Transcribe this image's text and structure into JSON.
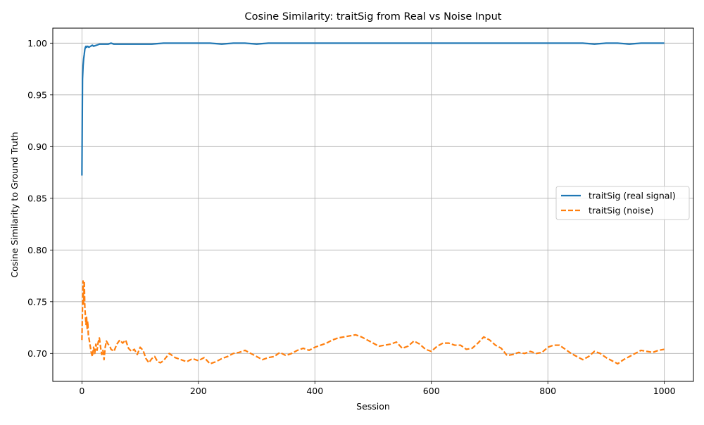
{
  "chart_data": {
    "type": "line",
    "title": "Cosine Similarity: traitSig from Real vs Noise Input",
    "xlabel": "Session",
    "ylabel": "Cosine Similarity to Ground Truth",
    "xlim": [
      -50,
      1050
    ],
    "ylim": [
      0.673,
      1.0145
    ],
    "xticks": [
      0,
      200,
      400,
      600,
      800,
      1000
    ],
    "xtick_labels": [
      "0",
      "200",
      "400",
      "600",
      "800",
      "1000"
    ],
    "yticks": [
      0.7,
      0.75,
      0.8,
      0.85,
      0.9,
      0.95,
      1.0
    ],
    "ytick_labels": [
      "0.70",
      "0.75",
      "0.80",
      "0.85",
      "0.90",
      "0.95",
      "1.00"
    ],
    "grid": true,
    "legend_position": "center-right",
    "series": [
      {
        "name": "traitSig (real signal)",
        "color": "#1f77b4",
        "style": "solid",
        "x": [
          0,
          1,
          2,
          3,
          4,
          5,
          6,
          7,
          8,
          10,
          12,
          15,
          18,
          20,
          25,
          30,
          35,
          40,
          45,
          50,
          55,
          60,
          65,
          70,
          80,
          90,
          100,
          110,
          120,
          140,
          160,
          180,
          200,
          220,
          240,
          260,
          280,
          300,
          320,
          340,
          360,
          380,
          400,
          420,
          440,
          460,
          480,
          500,
          520,
          540,
          560,
          580,
          600,
          620,
          640,
          660,
          680,
          700,
          720,
          740,
          760,
          780,
          800,
          820,
          840,
          860,
          880,
          900,
          920,
          940,
          960,
          980,
          1000
        ],
        "y": [
          0.872,
          0.965,
          0.978,
          0.985,
          0.989,
          0.994,
          0.996,
          0.997,
          0.996,
          0.997,
          0.996,
          0.997,
          0.998,
          0.997,
          0.998,
          0.999,
          0.999,
          0.999,
          0.999,
          1.0,
          0.999,
          0.999,
          0.999,
          0.999,
          0.999,
          0.999,
          0.999,
          0.999,
          0.999,
          1.0,
          1.0,
          1.0,
          1.0,
          1.0,
          0.999,
          1.0,
          1.0,
          0.999,
          1.0,
          1.0,
          1.0,
          1.0,
          1.0,
          1.0,
          1.0,
          1.0,
          1.0,
          1.0,
          1.0,
          1.0,
          1.0,
          1.0,
          1.0,
          1.0,
          1.0,
          1.0,
          1.0,
          1.0,
          1.0,
          1.0,
          1.0,
          1.0,
          1.0,
          1.0,
          1.0,
          1.0,
          0.999,
          1.0,
          1.0,
          0.999,
          1.0,
          1.0,
          1.0
        ]
      },
      {
        "name": "traitSig (noise)",
        "color": "#ff7f0e",
        "style": "dashed",
        "x": [
          0,
          1,
          2,
          3,
          4,
          5,
          6,
          7,
          8,
          9,
          10,
          11,
          12,
          14,
          16,
          18,
          20,
          22,
          24,
          26,
          28,
          30,
          32,
          34,
          36,
          38,
          40,
          42,
          45,
          48,
          50,
          55,
          60,
          65,
          70,
          75,
          80,
          85,
          90,
          95,
          100,
          105,
          110,
          115,
          120,
          125,
          130,
          135,
          140,
          150,
          160,
          170,
          180,
          190,
          200,
          210,
          220,
          230,
          240,
          250,
          260,
          270,
          280,
          290,
          300,
          310,
          320,
          330,
          340,
          350,
          360,
          370,
          380,
          390,
          400,
          410,
          420,
          430,
          440,
          450,
          460,
          470,
          480,
          490,
          500,
          510,
          520,
          530,
          540,
          550,
          560,
          570,
          580,
          590,
          600,
          610,
          620,
          630,
          640,
          650,
          660,
          670,
          680,
          690,
          700,
          710,
          720,
          730,
          740,
          750,
          760,
          770,
          780,
          790,
          800,
          810,
          820,
          830,
          840,
          850,
          860,
          870,
          880,
          890,
          900,
          910,
          920,
          930,
          940,
          950,
          960,
          970,
          980,
          990,
          1000
        ],
        "y": [
          0.713,
          0.745,
          0.77,
          0.748,
          0.77,
          0.745,
          0.736,
          0.728,
          0.735,
          0.724,
          0.731,
          0.718,
          0.715,
          0.708,
          0.701,
          0.697,
          0.706,
          0.7,
          0.709,
          0.703,
          0.711,
          0.715,
          0.706,
          0.699,
          0.703,
          0.694,
          0.706,
          0.712,
          0.709,
          0.707,
          0.704,
          0.702,
          0.709,
          0.713,
          0.71,
          0.713,
          0.705,
          0.702,
          0.704,
          0.699,
          0.706,
          0.703,
          0.695,
          0.691,
          0.695,
          0.697,
          0.692,
          0.691,
          0.693,
          0.7,
          0.696,
          0.694,
          0.692,
          0.695,
          0.693,
          0.696,
          0.69,
          0.692,
          0.695,
          0.697,
          0.7,
          0.701,
          0.703,
          0.7,
          0.697,
          0.694,
          0.696,
          0.697,
          0.701,
          0.698,
          0.7,
          0.703,
          0.705,
          0.703,
          0.706,
          0.708,
          0.71,
          0.713,
          0.715,
          0.716,
          0.717,
          0.718,
          0.716,
          0.713,
          0.71,
          0.707,
          0.708,
          0.709,
          0.711,
          0.705,
          0.707,
          0.712,
          0.709,
          0.704,
          0.702,
          0.707,
          0.71,
          0.71,
          0.708,
          0.708,
          0.704,
          0.705,
          0.71,
          0.716,
          0.713,
          0.708,
          0.705,
          0.698,
          0.699,
          0.701,
          0.7,
          0.702,
          0.7,
          0.701,
          0.706,
          0.708,
          0.708,
          0.704,
          0.7,
          0.697,
          0.694,
          0.697,
          0.702,
          0.7,
          0.696,
          0.693,
          0.69,
          0.694,
          0.697,
          0.7,
          0.703,
          0.702,
          0.701,
          0.703,
          0.704
        ]
      }
    ]
  }
}
